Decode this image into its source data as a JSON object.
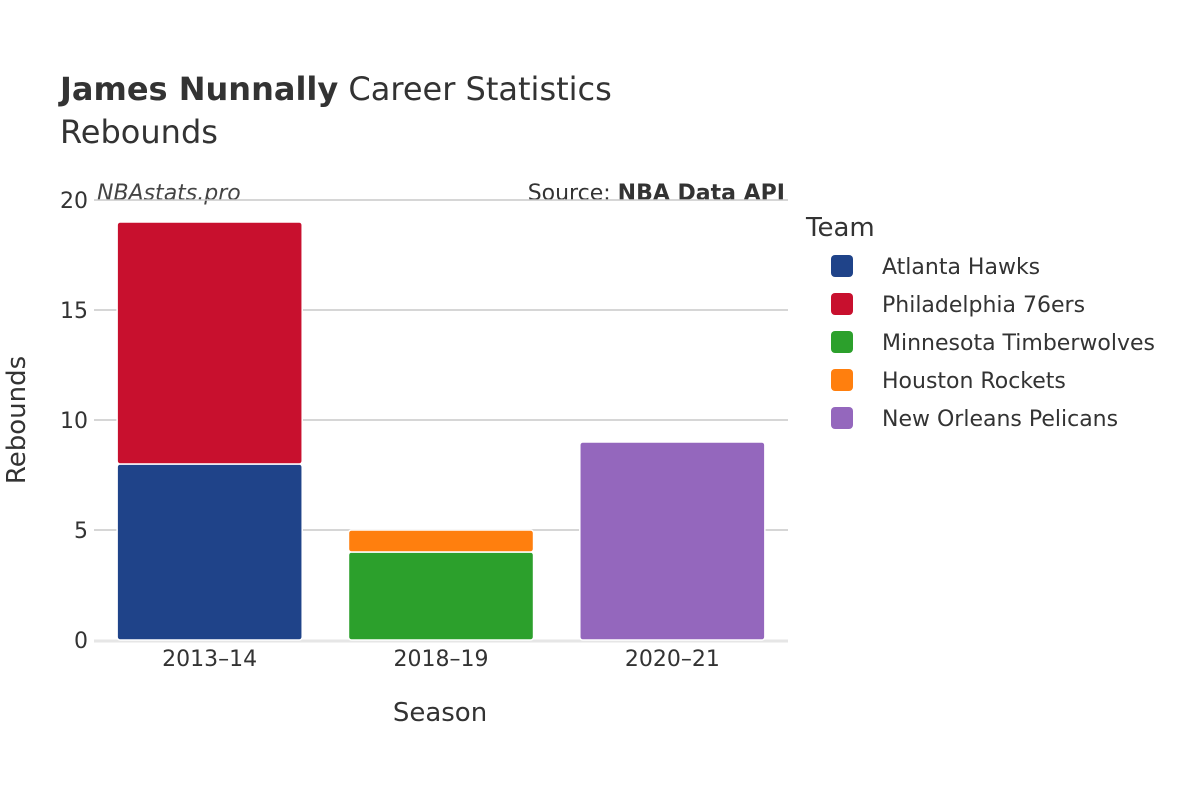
{
  "chart_data": {
    "type": "bar",
    "stacked": true,
    "title_bold": "James Nunnally",
    "title_rest": " Career Statistics",
    "subtitle": "Rebounds",
    "watermark": "NBAstats.pro",
    "source_prefix": "Source: ",
    "source_name": "NBA Data API",
    "xlabel": "Season",
    "ylabel": "Rebounds",
    "ylim": [
      0,
      20
    ],
    "yticks": [
      0,
      5,
      10,
      15,
      20
    ],
    "grid": true,
    "legend_title": "Team",
    "legend_position": "right",
    "categories": [
      "2013–14",
      "2018–19",
      "2020–21"
    ],
    "series": [
      {
        "name": "Atlanta Hawks",
        "color": "#1f4389",
        "values": [
          8,
          0,
          0
        ]
      },
      {
        "name": "Philadelphia 76ers",
        "color": "#c8102e",
        "values": [
          11,
          0,
          0
        ]
      },
      {
        "name": "Minnesota Timberwolves",
        "color": "#2ca02c",
        "values": [
          0,
          4,
          0
        ]
      },
      {
        "name": "Houston Rockets",
        "color": "#ff7f0e",
        "values": [
          0,
          1,
          0
        ]
      },
      {
        "name": "New Orleans Pelicans",
        "color": "#9467bd",
        "values": [
          0,
          0,
          9
        ]
      }
    ]
  }
}
